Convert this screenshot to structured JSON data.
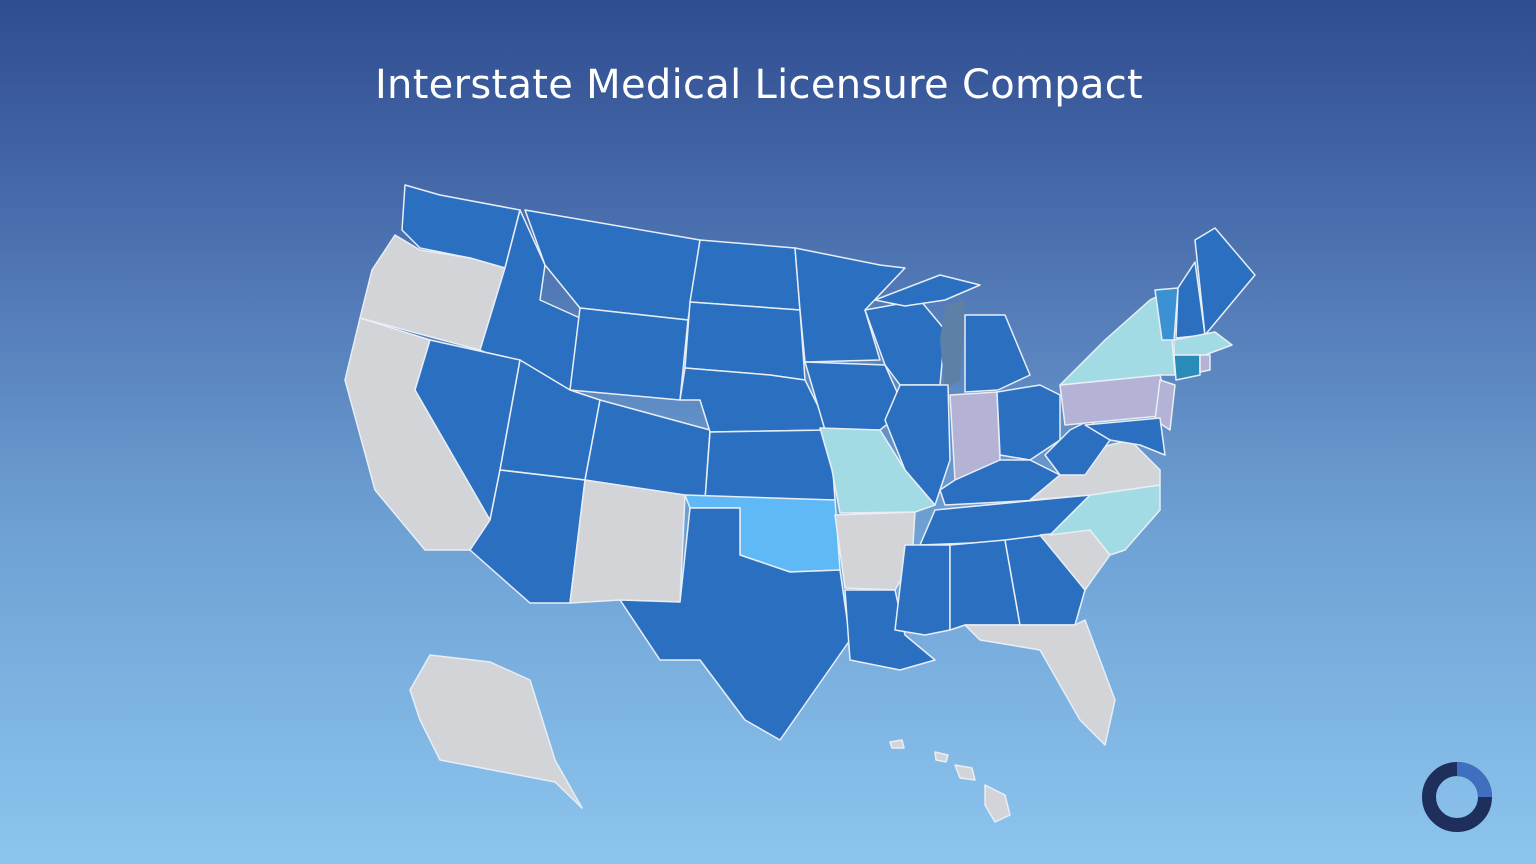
{
  "title": "Interstate Medical Licensure Compact"
}
